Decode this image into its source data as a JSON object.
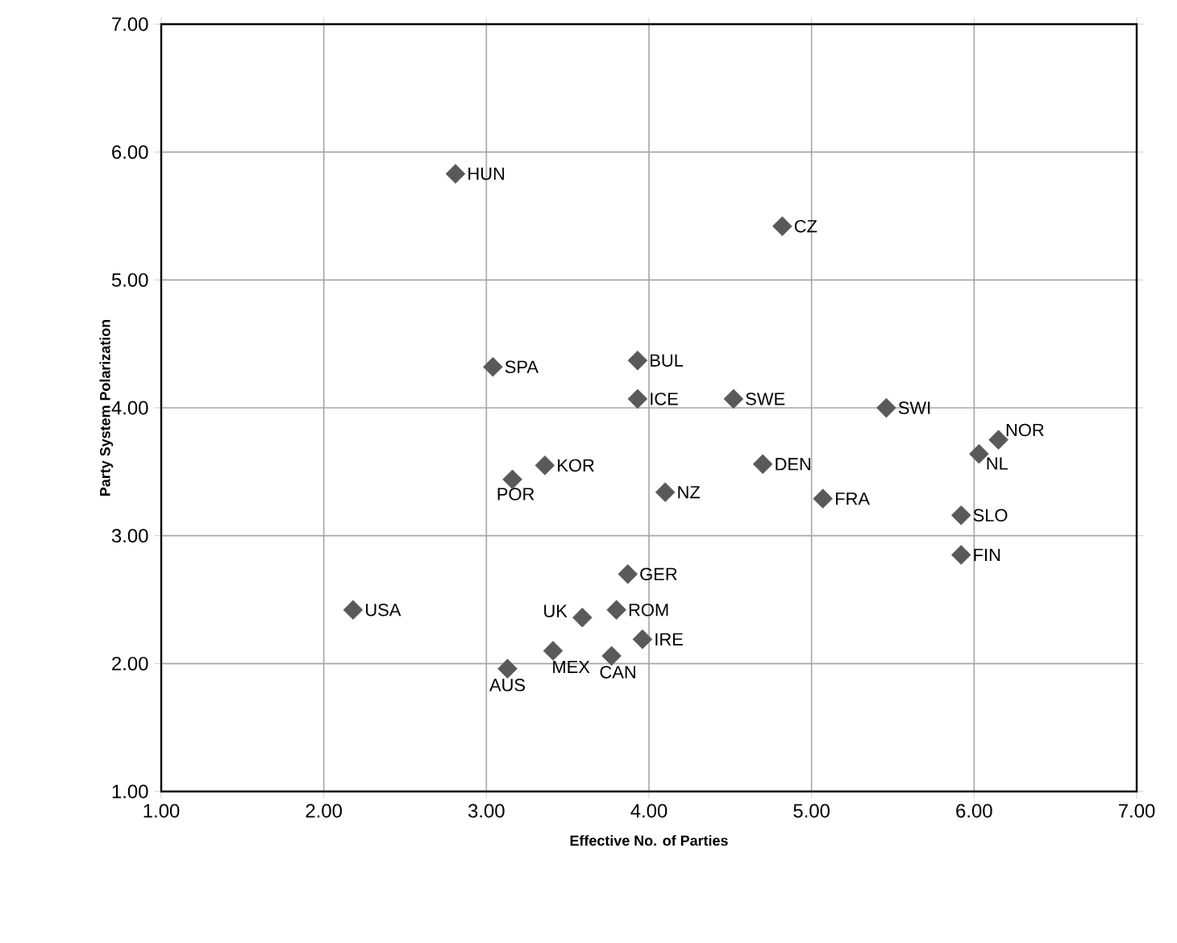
{
  "chart_data": {
    "type": "scatter",
    "xlabel": "Effective No. of Parties",
    "ylabel": "Party System Polarization",
    "x": [
      2.81,
      4.82,
      3.04,
      3.93,
      3.93,
      4.52,
      5.46,
      6.15,
      6.03,
      3.36,
      3.16,
      4.1,
      4.7,
      5.07,
      5.92,
      5.92,
      3.87,
      2.18,
      3.59,
      3.8,
      3.96,
      3.41,
      3.77,
      3.13
    ],
    "values": [
      5.83,
      5.42,
      4.32,
      4.37,
      4.07,
      4.07,
      4.0,
      3.75,
      3.64,
      3.55,
      3.44,
      3.34,
      3.56,
      3.29,
      3.16,
      2.85,
      2.7,
      2.42,
      2.36,
      2.42,
      2.19,
      2.1,
      2.06,
      1.96
    ],
    "color": "#595959",
    "marker": "diamond",
    "grid": true,
    "xlim": [
      1,
      7
    ],
    "ylim": [
      1,
      7
    ],
    "xticks": [
      {
        "value": 1,
        "label": "1.00"
      },
      {
        "value": 2,
        "label": "2.00"
      },
      {
        "value": 3,
        "label": "3.00"
      },
      {
        "value": 4,
        "label": "4.00"
      },
      {
        "value": 5,
        "label": "5.00"
      },
      {
        "value": 6,
        "label": "6.00"
      },
      {
        "value": 7,
        "label": "7.00"
      }
    ],
    "yticks": [
      {
        "value": 1,
        "label": "1.00"
      },
      {
        "value": 2,
        "label": "2.00"
      },
      {
        "value": 3,
        "label": "3.00"
      },
      {
        "value": 4,
        "label": "4.00"
      },
      {
        "value": 5,
        "label": "5.00"
      },
      {
        "value": 6,
        "label": "6.00"
      },
      {
        "value": 7,
        "label": "7.00"
      }
    ],
    "annotations": [
      {
        "text": "HUN",
        "x": 2.81,
        "y": 5.83
      },
      {
        "text": "CZ",
        "x": 4.82,
        "y": 5.42
      },
      {
        "text": "SPA",
        "x": 3.04,
        "y": 4.32
      },
      {
        "text": "BUL",
        "x": 3.93,
        "y": 4.37
      },
      {
        "text": "ICE",
        "x": 3.93,
        "y": 4.07
      },
      {
        "text": "SWE",
        "x": 4.52,
        "y": 4.07
      },
      {
        "text": "SWI",
        "x": 5.46,
        "y": 4.0
      },
      {
        "text": "NOR",
        "x": 6.15,
        "y": 3.75
      },
      {
        "text": "NL",
        "x": 6.03,
        "y": 3.64
      },
      {
        "text": "KOR",
        "x": 3.36,
        "y": 3.55
      },
      {
        "text": "POR",
        "x": 3.16,
        "y": 3.44
      },
      {
        "text": "NZ",
        "x": 4.1,
        "y": 3.34
      },
      {
        "text": "DEN",
        "x": 4.7,
        "y": 3.56
      },
      {
        "text": "FRA",
        "x": 5.07,
        "y": 3.29
      },
      {
        "text": "SLO",
        "x": 5.92,
        "y": 3.16
      },
      {
        "text": "FIN",
        "x": 5.92,
        "y": 2.85
      },
      {
        "text": "GER",
        "x": 3.87,
        "y": 2.7
      },
      {
        "text": "USA",
        "x": 2.18,
        "y": 2.42
      },
      {
        "text": "UK",
        "x": 3.59,
        "y": 2.36
      },
      {
        "text": "ROM",
        "x": 3.8,
        "y": 2.42
      },
      {
        "text": "IRE",
        "x": 3.96,
        "y": 2.19
      },
      {
        "text": "MEX",
        "x": 3.41,
        "y": 2.1
      },
      {
        "text": "CAN",
        "x": 3.77,
        "y": 2.06
      },
      {
        "text": "AUS",
        "x": 3.13,
        "y": 1.96
      }
    ]
  }
}
